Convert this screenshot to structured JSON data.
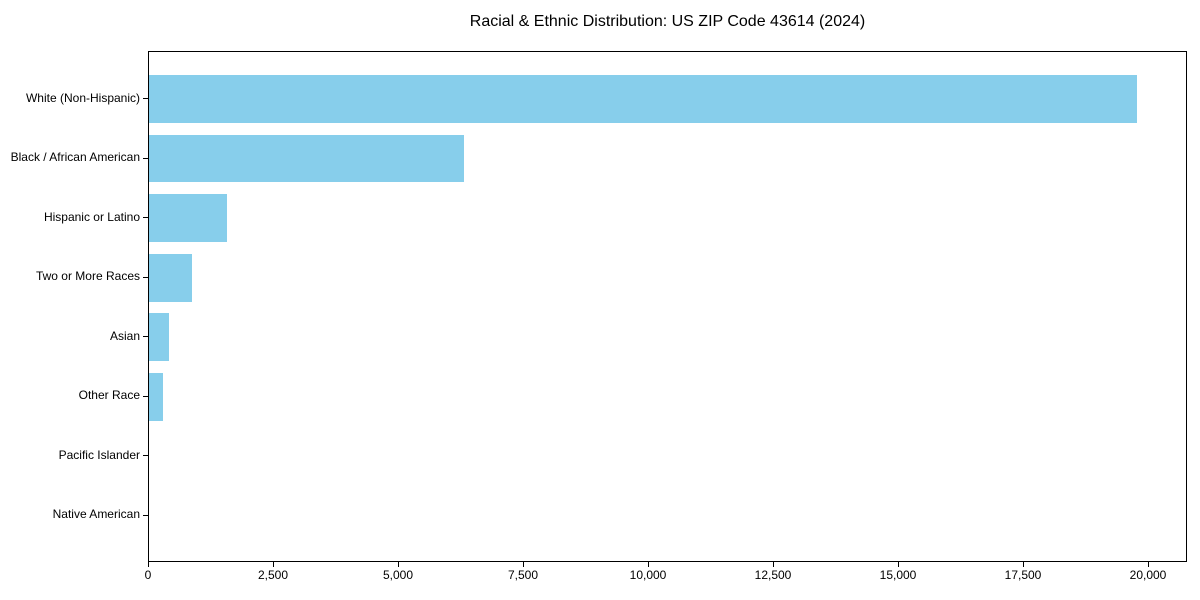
{
  "figure": {
    "background_color": "#ffffff",
    "spine_color": "#000000",
    "text_color": "#000000"
  },
  "chart_data": {
    "type": "bar",
    "orientation": "horizontal",
    "title": "Racial & Ethnic Distribution: US ZIP Code 43614 (2024)",
    "xlabel": "",
    "ylabel": "",
    "categories": [
      "White (Non-Hispanic)",
      "Black / African American",
      "Hispanic or Latino",
      "Two or More Races",
      "Asian",
      "Other Race",
      "Pacific Islander",
      "Native American"
    ],
    "values": [
      19750,
      6300,
      1550,
      860,
      400,
      275,
      0,
      0
    ],
    "bar_color": "#87CEEB",
    "xlim": [
      0,
      20780
    ],
    "x_ticks": [
      0,
      2500,
      5000,
      7500,
      10000,
      12500,
      15000,
      17500,
      20000
    ],
    "x_tick_labels": [
      "0",
      "2,500",
      "5,000",
      "7,500",
      "10,000",
      "12,500",
      "15,000",
      "17,500",
      "20,000"
    ],
    "grid": false,
    "legend_position": "none"
  }
}
